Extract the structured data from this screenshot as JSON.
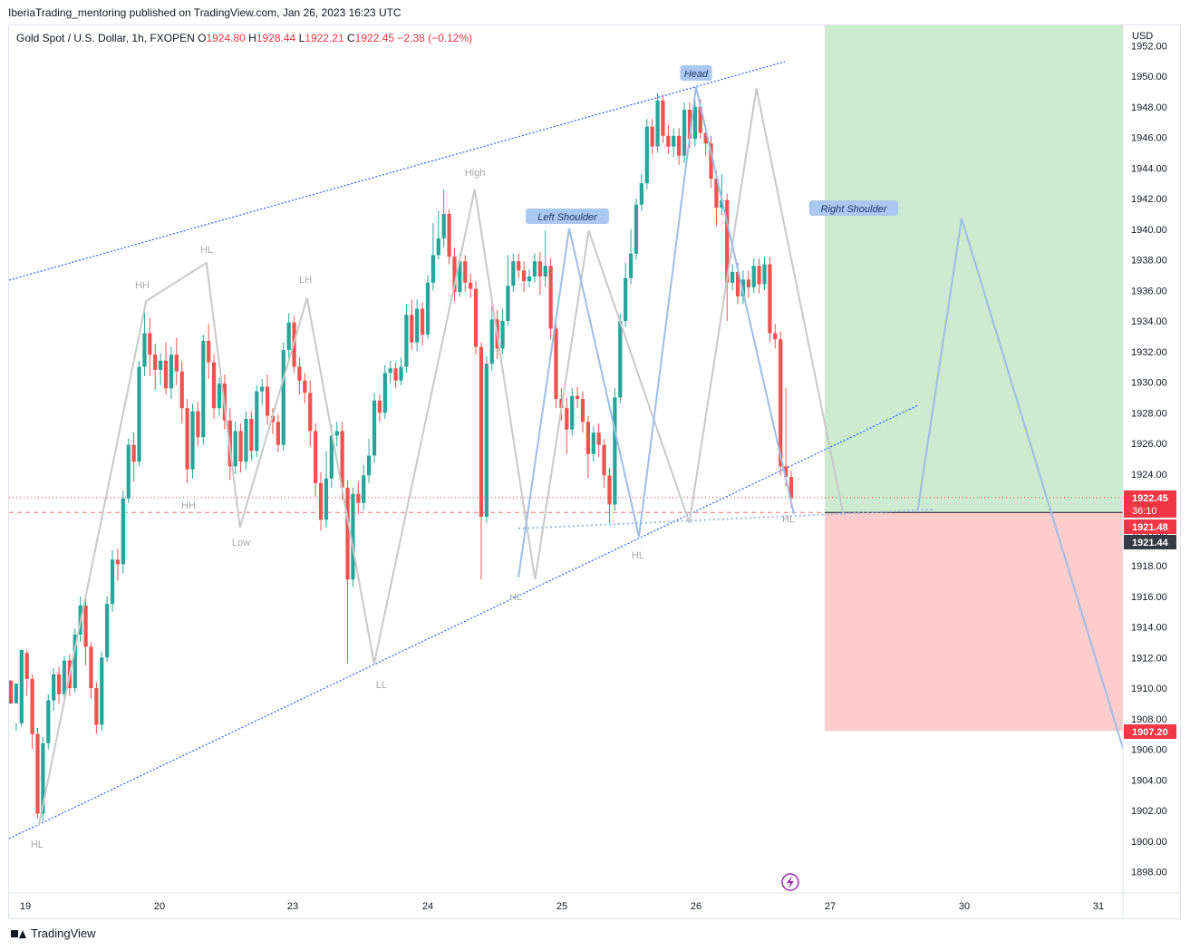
{
  "header": {
    "publish_line": "IberiaTrading_mentoring published on TradingView.com, Jan 26, 2023 16:23 UTC"
  },
  "symbol": {
    "title": "Gold Spot / U.S. Dollar, 1h, FXOPEN",
    "o_label": "O",
    "o": "1924.80",
    "h_label": "H",
    "h": "1928.44",
    "l_label": "L",
    "l": "1922.21",
    "c_label": "C",
    "c": "1922.45",
    "change": "−2.38 (−0.12%)"
  },
  "axis": {
    "currency": "USD"
  },
  "footer": {
    "brand": "TradingView"
  },
  "colors": {
    "up": "#26a69a",
    "down": "#ef5350",
    "trendline": "#2962ff",
    "pattern_line": "#9ebde6",
    "swing_line": "#c8c8c8",
    "target_zone": "#cdebd0",
    "stop_zone": "#fdcccc",
    "stop_badge": "#f23645",
    "last_price_badge": "#f23645",
    "dark_badge": "#363a45"
  },
  "chart_data": {
    "type": "candlestick",
    "ylim": [
      1897,
      1953
    ],
    "y_ticks": [
      1898,
      1900,
      1902,
      1904,
      1906,
      1908,
      1910,
      1912,
      1914,
      1916,
      1918,
      1920,
      1922,
      1924,
      1926,
      1928,
      1930,
      1932,
      1934,
      1936,
      1938,
      1940,
      1942,
      1944,
      1946,
      1948,
      1950,
      1952
    ],
    "x_ticks": [
      "19",
      "20",
      "23",
      "24",
      "25",
      "26",
      "27",
      "30",
      "31"
    ],
    "price_badges": [
      {
        "value": "1922.45",
        "sub": "36:10",
        "kind": "last"
      },
      {
        "value": "1921.48",
        "kind": "entry"
      },
      {
        "value": "1921.44",
        "kind": "dark"
      },
      {
        "value": "1907.20",
        "kind": "stop"
      }
    ],
    "swing_labels": [
      "HL",
      "HH",
      "HL",
      "HH",
      "Low",
      "LH",
      "LL",
      "High",
      "HL",
      "HL",
      "HL"
    ],
    "pattern_labels": [
      "Head",
      "Left Shoulder",
      "Right Shoulder"
    ],
    "trade": {
      "entry": 1921.48,
      "target_top": 1953,
      "stop": 1907.2
    },
    "projection": [
      {
        "session": 6.65,
        "price": 1921.5
      },
      {
        "session": 6.98,
        "price": 1940.7
      },
      {
        "session": 8.22,
        "price": 1905
      }
    ],
    "swing_points": [
      {
        "session": 0.1,
        "price": 1901.0
      },
      {
        "session": 0.9,
        "price": 1935.3
      },
      {
        "session": 1.35,
        "price": 1937.8
      },
      {
        "session": 1.6,
        "price": 1920.5
      },
      {
        "session": 2.1,
        "price": 1935.5
      },
      {
        "session": 2.6,
        "price": 1911.6
      },
      {
        "session": 3.35,
        "price": 1942.6
      },
      {
        "session": 3.8,
        "price": 1917.1
      },
      {
        "session": 4.2,
        "price": 1939.9
      },
      {
        "session": 4.95,
        "price": 1920.8
      },
      {
        "session": 5.45,
        "price": 1949.2
      },
      {
        "session": 6.1,
        "price": 1921.3
      }
    ],
    "candles": [
      [
        1910.5,
        1909.0,
        1910.4,
        1909.0
      ],
      [
        1909.0,
        1910.3,
        1907.2,
        1907.7
      ],
      [
        1907.7,
        1912.5,
        1907.5,
        1912.3
      ],
      [
        1912.3,
        1910.6,
        1912.5,
        1909.5
      ],
      [
        1910.6,
        1907.0,
        1910.9,
        1906.0
      ],
      [
        1907.0,
        1901.8,
        1907.4,
        1901.5
      ],
      [
        1901.8,
        1906.4,
        1901.3,
        1906.8
      ],
      [
        1906.4,
        1909.2,
        1906.0,
        1909.6
      ],
      [
        1909.2,
        1910.9,
        1908.5,
        1911.3
      ],
      [
        1910.9,
        1909.6,
        1911.4,
        1909.0
      ],
      [
        1909.6,
        1911.8,
        1909.2,
        1912.1
      ],
      [
        1911.8,
        1910.0,
        1912.2,
        1909.5
      ],
      [
        1910.0,
        1913.5,
        1909.7,
        1913.9
      ],
      [
        1913.5,
        1915.4,
        1913.0,
        1916.0
      ],
      [
        1915.4,
        1912.7,
        1915.9,
        1911.5
      ],
      [
        1912.7,
        1910.0,
        1913.0,
        1909.3
      ],
      [
        1910.0,
        1907.6,
        1910.4,
        1907.0
      ],
      [
        1907.6,
        1912.0,
        1907.2,
        1912.4
      ],
      [
        1912.0,
        1915.5,
        1911.7,
        1916.0
      ],
      [
        1915.5,
        1918.4,
        1915.0,
        1919.0
      ],
      [
        1918.4,
        1918.1,
        1919.1,
        1917.0
      ],
      [
        1918.1,
        1922.4,
        1917.5,
        1922.9
      ],
      [
        1922.4,
        1925.9,
        1922.1,
        1926.3
      ],
      [
        1925.9,
        1924.8,
        1926.7,
        1923.5
      ],
      [
        1924.8,
        1931.0,
        1924.5,
        1931.4
      ],
      [
        1931.0,
        1933.2,
        1930.4,
        1934.7
      ],
      [
        1933.2,
        1931.8,
        1934.2,
        1930.4
      ],
      [
        1931.8,
        1930.8,
        1932.5,
        1929.5
      ],
      [
        1930.8,
        1931.4,
        1929.8,
        1931.9
      ],
      [
        1931.4,
        1929.6,
        1932.6,
        1929.2
      ],
      [
        1929.6,
        1931.8,
        1928.9,
        1932.3
      ],
      [
        1931.8,
        1930.7,
        1932.9,
        1929.8
      ],
      [
        1930.7,
        1928.3,
        1931.4,
        1927.3
      ],
      [
        1928.3,
        1924.3,
        1928.9,
        1923.4
      ],
      [
        1924.3,
        1928.1,
        1923.7,
        1928.6
      ],
      [
        1928.1,
        1926.4,
        1928.7,
        1925.8
      ],
      [
        1926.4,
        1932.7,
        1925.9,
        1933.1
      ],
      [
        1932.7,
        1931.3,
        1933.8,
        1930.2
      ],
      [
        1931.3,
        1928.3,
        1931.8,
        1927.6
      ],
      [
        1928.3,
        1929.9,
        1927.8,
        1930.3
      ],
      [
        1929.9,
        1927.5,
        1930.5,
        1926.9
      ],
      [
        1927.5,
        1924.5,
        1928.3,
        1923.6
      ],
      [
        1924.5,
        1926.8,
        1924.0,
        1927.4
      ],
      [
        1926.8,
        1924.8,
        1927.3,
        1924.1
      ],
      [
        1924.8,
        1927.6,
        1924.3,
        1928.1
      ],
      [
        1927.6,
        1925.5,
        1928.1,
        1924.9
      ],
      [
        1925.5,
        1929.4,
        1925.1,
        1929.8
      ],
      [
        1929.4,
        1929.7,
        1928.5,
        1930.2
      ],
      [
        1929.7,
        1927.8,
        1930.5,
        1927.2
      ],
      [
        1927.8,
        1927.4,
        1928.3,
        1926.6
      ],
      [
        1927.4,
        1925.9,
        1927.9,
        1925.4
      ],
      [
        1925.9,
        1932.1,
        1925.5,
        1932.6
      ],
      [
        1932.1,
        1933.9,
        1931.4,
        1934.5
      ],
      [
        1933.9,
        1931.0,
        1934.3,
        1930.6
      ],
      [
        1931.0,
        1930.1,
        1931.6,
        1929.2
      ],
      [
        1930.1,
        1929.3,
        1930.6,
        1928.6
      ],
      [
        1929.3,
        1926.8,
        1930.1,
        1925.8
      ],
      [
        1926.8,
        1923.4,
        1927.3,
        1922.5
      ],
      [
        1923.4,
        1921.0,
        1924.1,
        1920.3
      ],
      [
        1921.0,
        1923.7,
        1920.5,
        1925.5
      ],
      [
        1923.7,
        1926.5,
        1923.1,
        1927.2
      ],
      [
        1926.5,
        1926.8,
        1925.8,
        1927.4
      ],
      [
        1926.8,
        1923.1,
        1927.4,
        1922.3
      ],
      [
        1923.1,
        1917.1,
        1923.6,
        1911.6
      ],
      [
        1917.1,
        1922.7,
        1916.6,
        1923.1
      ],
      [
        1922.7,
        1922.1,
        1923.5,
        1921.4
      ],
      [
        1922.1,
        1923.9,
        1921.6,
        1924.6
      ],
      [
        1923.9,
        1925.2,
        1923.4,
        1926.3
      ],
      [
        1925.2,
        1928.8,
        1924.7,
        1929.3
      ],
      [
        1928.8,
        1928.0,
        1929.2,
        1927.4
      ],
      [
        1928.0,
        1930.6,
        1927.6,
        1931.1
      ],
      [
        1930.6,
        1930.9,
        1929.9,
        1931.4
      ],
      [
        1930.9,
        1930.1,
        1931.3,
        1929.6
      ],
      [
        1930.1,
        1931.0,
        1929.8,
        1931.6
      ],
      [
        1931.0,
        1934.4,
        1930.6,
        1935.1
      ],
      [
        1934.4,
        1932.6,
        1935.4,
        1932.1
      ],
      [
        1932.6,
        1934.8,
        1932.0,
        1935.4
      ],
      [
        1934.8,
        1933.1,
        1935.2,
        1932.4
      ],
      [
        1933.1,
        1936.5,
        1932.8,
        1937.0
      ],
      [
        1936.5,
        1938.3,
        1936.0,
        1940.4
      ],
      [
        1938.3,
        1939.4,
        1938.0,
        1941.2
      ],
      [
        1939.4,
        1941.0,
        1938.8,
        1942.6
      ],
      [
        1941.0,
        1938.2,
        1941.3,
        1937.7
      ],
      [
        1938.2,
        1935.9,
        1938.8,
        1935.3
      ],
      [
        1935.9,
        1937.9,
        1935.6,
        1938.4
      ],
      [
        1937.9,
        1936.5,
        1938.3,
        1935.9
      ],
      [
        1936.5,
        1936.1,
        1937.1,
        1935.5
      ],
      [
        1936.1,
        1932.3,
        1936.6,
        1931.8
      ],
      [
        1932.3,
        1921.2,
        1932.6,
        1917.1
      ],
      [
        1921.2,
        1931.2,
        1920.8,
        1931.7
      ],
      [
        1931.2,
        1934.1,
        1930.7,
        1935.0
      ],
      [
        1934.1,
        1932.2,
        1934.7,
        1931.5
      ],
      [
        1932.2,
        1934.0,
        1931.8,
        1934.8
      ],
      [
        1934.0,
        1936.3,
        1933.7,
        1938.3
      ],
      [
        1936.3,
        1937.9,
        1935.9,
        1938.4
      ],
      [
        1937.9,
        1937.3,
        1938.4,
        1936.8
      ],
      [
        1937.3,
        1936.6,
        1937.9,
        1935.9
      ],
      [
        1936.6,
        1936.9,
        1936.2,
        1937.4
      ],
      [
        1936.9,
        1937.9,
        1936.5,
        1938.4
      ],
      [
        1937.9,
        1936.9,
        1938.5,
        1935.7
      ],
      [
        1936.9,
        1937.6,
        1936.2,
        1939.9
      ],
      [
        1937.6,
        1933.5,
        1938.1,
        1932.8
      ],
      [
        1933.5,
        1928.9,
        1933.9,
        1928.3
      ],
      [
        1928.9,
        1928.3,
        1929.6,
        1927.5
      ],
      [
        1928.3,
        1926.9,
        1929.0,
        1925.3
      ],
      [
        1926.9,
        1929.1,
        1926.5,
        1929.6
      ],
      [
        1929.1,
        1928.9,
        1929.7,
        1928.3
      ],
      [
        1928.9,
        1927.4,
        1929.4,
        1926.7
      ],
      [
        1927.4,
        1925.3,
        1927.8,
        1923.7
      ],
      [
        1925.3,
        1926.7,
        1924.8,
        1927.1
      ],
      [
        1926.7,
        1925.9,
        1927.3,
        1925.1
      ],
      [
        1925.9,
        1923.9,
        1926.3,
        1923.1
      ],
      [
        1923.9,
        1922.0,
        1924.4,
        1920.8
      ],
      [
        1922.0,
        1929.0,
        1921.6,
        1929.6
      ],
      [
        1929.0,
        1934.0,
        1928.6,
        1934.5
      ],
      [
        1934.0,
        1936.8,
        1933.6,
        1937.8
      ],
      [
        1936.8,
        1938.4,
        1936.4,
        1940.0
      ],
      [
        1938.4,
        1941.6,
        1938.0,
        1942.0
      ],
      [
        1941.6,
        1943.0,
        1941.2,
        1943.6
      ],
      [
        1943.0,
        1946.7,
        1942.6,
        1947.2
      ],
      [
        1946.7,
        1945.4,
        1947.2,
        1944.9
      ],
      [
        1945.4,
        1948.4,
        1945.0,
        1948.9
      ],
      [
        1948.4,
        1946.1,
        1948.8,
        1945.6
      ],
      [
        1946.1,
        1945.4,
        1946.8,
        1944.9
      ],
      [
        1945.4,
        1946.1,
        1944.7,
        1946.6
      ],
      [
        1946.1,
        1944.8,
        1946.6,
        1944.2
      ],
      [
        1944.8,
        1947.8,
        1944.3,
        1948.3
      ],
      [
        1947.8,
        1945.9,
        1948.3,
        1945.3
      ],
      [
        1945.9,
        1948.0,
        1945.4,
        1948.5
      ],
      [
        1948.0,
        1946.3,
        1948.5,
        1945.9
      ],
      [
        1946.3,
        1945.6,
        1946.8,
        1944.8
      ],
      [
        1945.6,
        1943.3,
        1946.1,
        1942.7
      ],
      [
        1943.3,
        1941.4,
        1943.8,
        1940.2
      ],
      [
        1941.4,
        1941.9,
        1940.9,
        1943.6
      ],
      [
        1941.9,
        1936.5,
        1942.3,
        1934.0
      ],
      [
        1936.5,
        1937.2,
        1936.0,
        1937.7
      ],
      [
        1937.2,
        1935.6,
        1937.8,
        1935.1
      ],
      [
        1935.6,
        1936.7,
        1935.1,
        1937.3
      ],
      [
        1936.7,
        1936.2,
        1937.3,
        1935.5
      ],
      [
        1936.2,
        1937.6,
        1935.8,
        1938.1
      ],
      [
        1937.6,
        1936.4,
        1938.1,
        1935.8
      ],
      [
        1936.4,
        1937.7,
        1936.0,
        1938.2
      ],
      [
        1937.7,
        1933.2,
        1938.2,
        1932.6
      ],
      [
        1933.2,
        1932.8,
        1933.8,
        1932.2
      ],
      [
        1932.8,
        1924.5,
        1933.3,
        1923.9
      ],
      [
        1924.5,
        1923.8,
        1929.6,
        1923.2
      ],
      [
        1923.8,
        1922.4,
        1924.2,
        1921.8
      ]
    ]
  }
}
